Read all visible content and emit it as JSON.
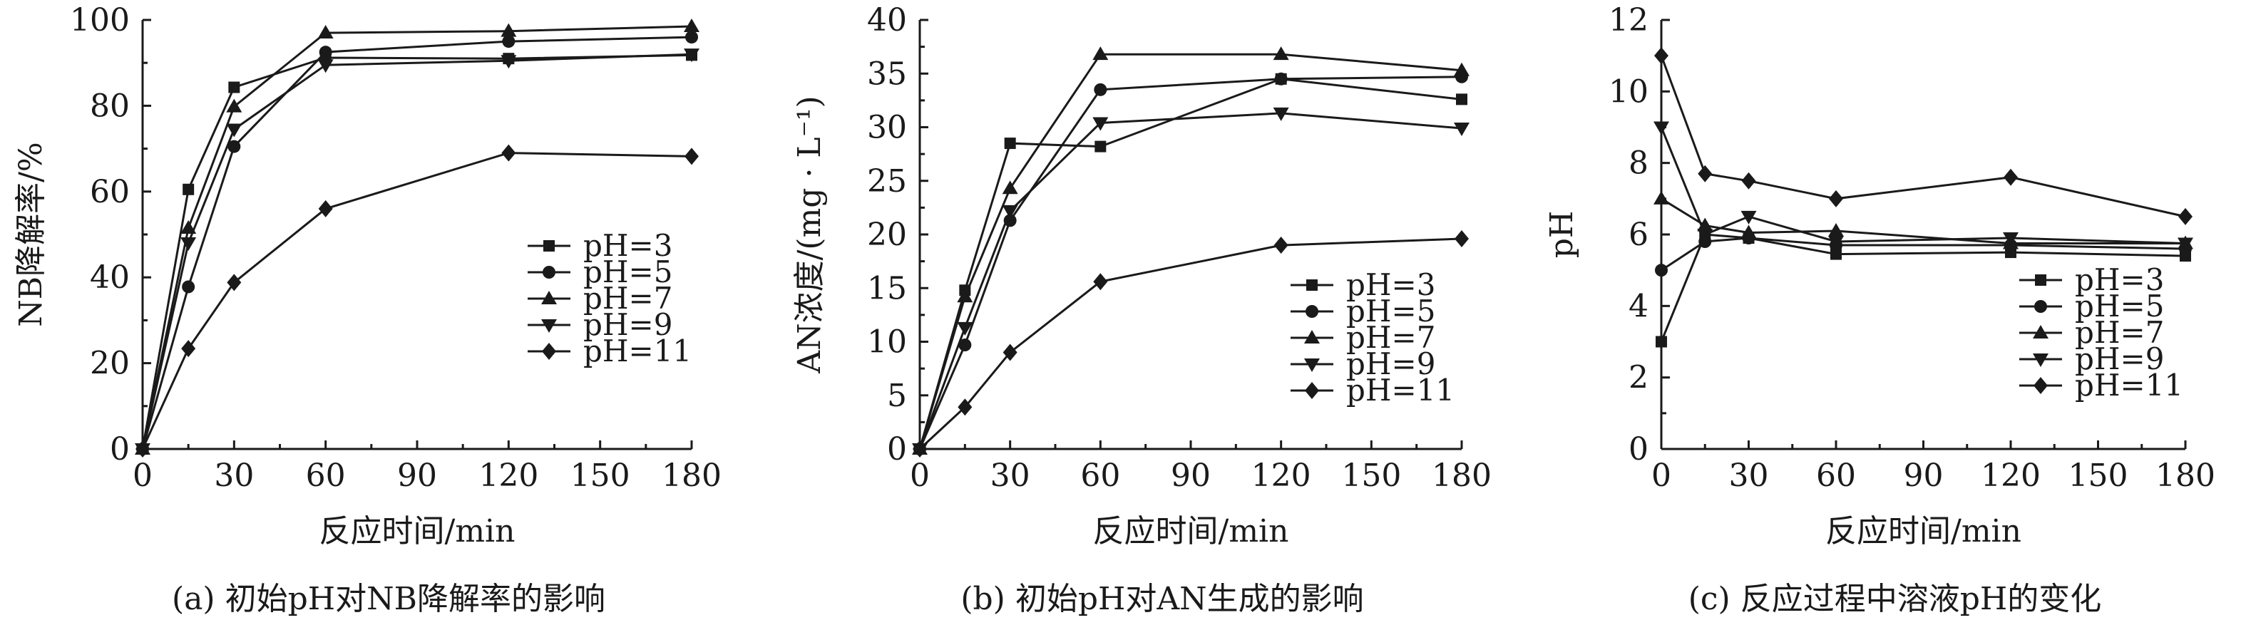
{
  "chart_data": [
    {
      "type": "line",
      "xlabel": "反应时间/min",
      "ylabel": "NB降解率/%",
      "caption": "(a) 初始pH对NB降解率的影响",
      "xlim": [
        0,
        180
      ],
      "ylim": [
        0,
        100
      ],
      "xticks": [
        "0",
        "30",
        "60",
        "90",
        "120",
        "150",
        "180"
      ],
      "yticks": [
        "0",
        "20",
        "40",
        "60",
        "80",
        "100"
      ],
      "x": [
        0,
        15,
        30,
        60,
        120,
        180
      ],
      "legend_position": "lower-right",
      "series": [
        {
          "name": "pH=3",
          "marker": "square",
          "values": [
            0,
            60.5,
            84.3,
            91.2,
            91.0,
            91.8
          ]
        },
        {
          "name": "pH=5",
          "marker": "circle",
          "values": [
            0,
            37.8,
            70.5,
            92.5,
            95.0,
            96.0
          ]
        },
        {
          "name": "pH=7",
          "marker": "triangle-up",
          "values": [
            0,
            51.5,
            79.8,
            97.0,
            97.4,
            98.5
          ]
        },
        {
          "name": "pH=9",
          "marker": "triangle-down",
          "values": [
            0,
            48.0,
            74.5,
            89.5,
            90.5,
            92.0
          ]
        },
        {
          "name": "pH=11",
          "marker": "diamond",
          "values": [
            0,
            23.4,
            38.8,
            56.0,
            69.0,
            68.2
          ]
        }
      ]
    },
    {
      "type": "line",
      "xlabel": "反应时间/min",
      "ylabel": "AN浓度/(mg · L⁻¹)",
      "caption": "(b) 初始pH对AN生成的影响",
      "xlim": [
        0,
        180
      ],
      "ylim": [
        0,
        40
      ],
      "xticks": [
        "0",
        "30",
        "60",
        "90",
        "120",
        "150",
        "180"
      ],
      "yticks": [
        "0",
        "5",
        "10",
        "15",
        "20",
        "25",
        "30",
        "35",
        "40"
      ],
      "x": [
        0,
        15,
        30,
        60,
        120,
        180
      ],
      "legend_position": "lower-right",
      "series": [
        {
          "name": "pH=3",
          "marker": "square",
          "values": [
            0,
            14.8,
            28.5,
            28.2,
            34.5,
            32.6
          ]
        },
        {
          "name": "pH=5",
          "marker": "circle",
          "values": [
            0,
            9.7,
            21.3,
            33.5,
            34.5,
            34.7
          ]
        },
        {
          "name": "pH=7",
          "marker": "triangle-up",
          "values": [
            0,
            14.2,
            24.3,
            36.8,
            36.8,
            35.3
          ]
        },
        {
          "name": "pH=9",
          "marker": "triangle-down",
          "values": [
            0,
            11.3,
            22.2,
            30.4,
            31.3,
            29.9
          ]
        },
        {
          "name": "pH=11",
          "marker": "diamond",
          "values": [
            0,
            3.9,
            9.0,
            15.6,
            19.0,
            19.6
          ]
        }
      ]
    },
    {
      "type": "line",
      "xlabel": "反应时间/min",
      "ylabel": "pH",
      "caption": "(c) 反应过程中溶液pH的变化",
      "xlim": [
        0,
        180
      ],
      "ylim": [
        0,
        12
      ],
      "xticks": [
        "0",
        "30",
        "60",
        "90",
        "120",
        "150",
        "180"
      ],
      "yticks": [
        "0",
        "2",
        "4",
        "6",
        "8",
        "10",
        "12"
      ],
      "x": [
        0,
        15,
        30,
        60,
        120,
        180
      ],
      "legend_position": "lower-right",
      "series": [
        {
          "name": "pH=3",
          "marker": "square",
          "values": [
            3.0,
            6.0,
            5.9,
            5.45,
            5.5,
            5.4
          ]
        },
        {
          "name": "pH=5",
          "marker": "circle",
          "values": [
            5.0,
            5.8,
            5.9,
            5.7,
            5.7,
            5.6
          ]
        },
        {
          "name": "pH=7",
          "marker": "triangle-up",
          "values": [
            7.0,
            6.25,
            6.05,
            6.1,
            5.75,
            5.75
          ]
        },
        {
          "name": "pH=9",
          "marker": "triangle-down",
          "values": [
            9.0,
            6.0,
            6.5,
            5.8,
            5.9,
            5.75
          ]
        },
        {
          "name": "pH=11",
          "marker": "diamond",
          "values": [
            11.0,
            7.7,
            7.5,
            7.0,
            7.6,
            6.5
          ]
        }
      ]
    }
  ]
}
